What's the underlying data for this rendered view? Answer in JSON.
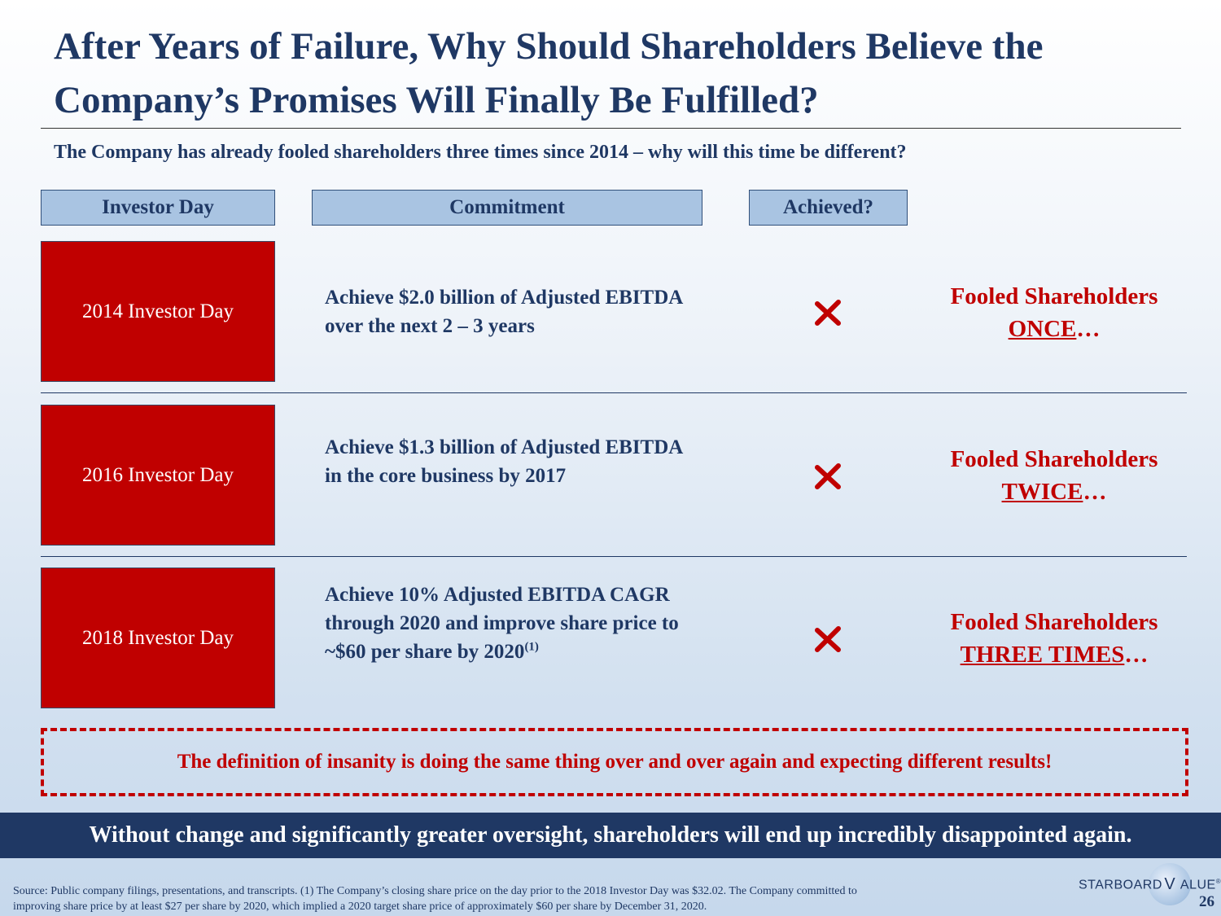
{
  "title_line1": "After Years of Failure, Why Should Shareholders Believe the",
  "title_line2": "Company’s Promises Will Finally Be Fulfilled?",
  "subtitle": "The Company has already fooled shareholders three times since 2014 – why will this time be different?",
  "columns": {
    "investor_day": "Investor Day",
    "commitment": "Commitment",
    "achieved": "Achieved?"
  },
  "rows": [
    {
      "day": "2014 Investor Day",
      "commitment": "Achieve $2.0 billion of Adjusted EBITDA over the next 2 – 3 years",
      "fooled_prefix": "Fooled Shareholders",
      "fooled_count": "ONCE",
      "fooled_suffix": "…"
    },
    {
      "day": "2016 Investor Day",
      "commitment": "Achieve $1.3 billion of Adjusted EBITDA in the core business by 2017",
      "fooled_prefix": "Fooled Shareholders",
      "fooled_count": "TWICE",
      "fooled_suffix": "…"
    },
    {
      "day": "2018 Investor Day",
      "commitment": "Achieve 10% Adjusted EBITDA CAGR through 2020 and improve share price to ~$60 per share by 2020",
      "commitment_footnote": "(1)",
      "fooled_prefix": "Fooled Shareholders",
      "fooled_count": "THREE TIMES",
      "fooled_suffix": "…"
    }
  ],
  "insanity_quote": "The definition of insanity is doing the same thing over and over again and expecting different results!",
  "banner": "Without change and significantly greater oversight, shareholders will end up incredibly disappointed again.",
  "source_line1": "Source: Public company filings, presentations, and transcripts. (1) The Company’s closing share price on the day prior to the 2018 Investor Day was $32.02. The Company committed to",
  "source_line2": "improving share price by at least $27 per share by 2020, which implied a 2020 target share price of approximately $60 per share by December 31, 2020.",
  "logo": {
    "left": "STARBOARD",
    "v": "V",
    "right": "ALUE",
    "mark": "®"
  },
  "page_number": "26",
  "colors": {
    "navy": "#1f3864",
    "red": "#c00000",
    "header_fill": "#a9c4e2"
  }
}
